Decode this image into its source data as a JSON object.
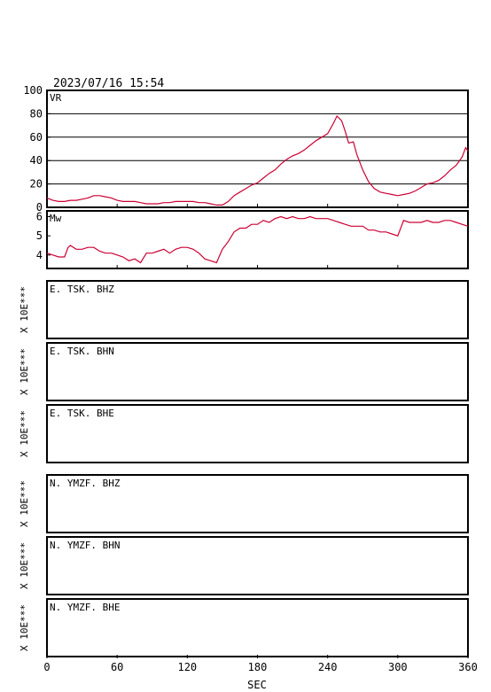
{
  "header": {
    "datetime": "2023/07/16  15:54"
  },
  "colors": {
    "trace": "#cc0033",
    "axis": "#000000",
    "background": "#ffffff"
  },
  "chart_data": [
    {
      "id": "vr",
      "type": "line",
      "label": "VR",
      "ylim": [
        0,
        100
      ],
      "yticks": [
        0,
        20,
        40,
        60,
        80,
        100
      ],
      "xlim": [
        0,
        360
      ],
      "grid": true,
      "x": [
        0,
        5,
        10,
        15,
        20,
        25,
        30,
        35,
        40,
        45,
        50,
        55,
        60,
        65,
        70,
        75,
        80,
        85,
        90,
        95,
        100,
        105,
        110,
        115,
        120,
        125,
        130,
        135,
        140,
        145,
        150,
        155,
        160,
        165,
        170,
        175,
        180,
        185,
        190,
        195,
        200,
        205,
        210,
        215,
        220,
        225,
        230,
        235,
        240,
        245,
        248,
        252,
        255,
        258,
        262,
        265,
        270,
        275,
        280,
        285,
        290,
        295,
        300,
        305,
        310,
        315,
        320,
        325,
        330,
        335,
        340,
        345,
        350,
        355,
        358,
        360
      ],
      "values": [
        8,
        6,
        5,
        5,
        6,
        6,
        7,
        8,
        10,
        10,
        9,
        8,
        6,
        5,
        5,
        5,
        4,
        3,
        3,
        3,
        4,
        4,
        5,
        5,
        5,
        5,
        4,
        4,
        3,
        2,
        2,
        5,
        10,
        13,
        16,
        19,
        21,
        25,
        29,
        32,
        37,
        41,
        44,
        46,
        49,
        53,
        57,
        60,
        63,
        72,
        78,
        74,
        65,
        55,
        56,
        45,
        32,
        22,
        16,
        13,
        12,
        11,
        10,
        11,
        12,
        14,
        17,
        20,
        21,
        23,
        27,
        32,
        36,
        43,
        51,
        48
      ]
    },
    {
      "id": "mw",
      "type": "line",
      "label": "Mw",
      "ylim": [
        3.3,
        6.3
      ],
      "yticks": [
        4,
        5,
        6
      ],
      "xlim": [
        0,
        360
      ],
      "grid": false,
      "x": [
        0,
        5,
        10,
        15,
        18,
        20,
        25,
        30,
        35,
        40,
        45,
        50,
        55,
        60,
        65,
        70,
        75,
        80,
        85,
        90,
        95,
        100,
        105,
        110,
        115,
        120,
        125,
        130,
        135,
        140,
        145,
        150,
        155,
        160,
        165,
        170,
        175,
        180,
        185,
        190,
        195,
        200,
        205,
        210,
        215,
        220,
        225,
        230,
        235,
        240,
        245,
        250,
        255,
        260,
        265,
        270,
        275,
        280,
        285,
        290,
        295,
        300,
        305,
        310,
        315,
        320,
        325,
        330,
        335,
        340,
        345,
        350,
        355,
        360
      ],
      "values": [
        4.1,
        4.0,
        3.9,
        3.9,
        4.4,
        4.5,
        4.3,
        4.3,
        4.4,
        4.4,
        4.2,
        4.1,
        4.1,
        4.0,
        3.9,
        3.7,
        3.8,
        3.6,
        4.1,
        4.1,
        4.2,
        4.3,
        4.1,
        4.3,
        4.4,
        4.4,
        4.3,
        4.1,
        3.8,
        3.7,
        3.6,
        4.3,
        4.7,
        5.2,
        5.4,
        5.4,
        5.6,
        5.6,
        5.8,
        5.7,
        5.9,
        6.0,
        5.9,
        6.0,
        5.9,
        5.9,
        6.0,
        5.9,
        5.9,
        5.9,
        5.8,
        5.7,
        5.6,
        5.5,
        5.5,
        5.5,
        5.3,
        5.3,
        5.2,
        5.2,
        5.1,
        5.0,
        5.8,
        5.7,
        5.7,
        5.7,
        5.8,
        5.7,
        5.7,
        5.8,
        5.8,
        5.7,
        5.6,
        5.5
      ]
    }
  ],
  "waveform_panels": [
    {
      "id": "e-tsk-bhz",
      "station": "E. TSK. BHZ",
      "scale": "X  10E***"
    },
    {
      "id": "e-tsk-bhn",
      "station": "E. TSK. BHN",
      "scale": "X  10E***"
    },
    {
      "id": "e-tsk-bhe",
      "station": "E. TSK. BHE",
      "scale": "X  10E***"
    },
    {
      "id": "n-ymzf-bhz",
      "station": "N. YMZF. BHZ",
      "scale": "X  10E***"
    },
    {
      "id": "n-ymzf-bhn",
      "station": "N. YMZF. BHN",
      "scale": "X  10E***"
    },
    {
      "id": "n-ymzf-bhe",
      "station": "N. YMZF. BHE",
      "scale": "X  10E***"
    }
  ],
  "x_axis": {
    "label": "SEC",
    "ticks": [
      0,
      60,
      120,
      180,
      240,
      300,
      360
    ],
    "range": [
      0,
      360
    ]
  }
}
